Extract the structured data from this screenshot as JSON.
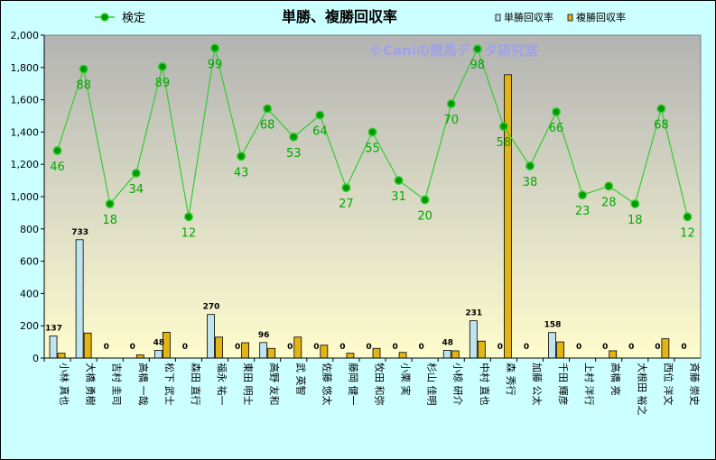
{
  "chart_data": {
    "type": "bar",
    "title": "単勝、複勝回収率",
    "watermark": "©Caniの競馬データ研究室",
    "xlabel": "",
    "ylabel": "",
    "ylim": [
      0,
      2000
    ],
    "y_ticks": [
      "0",
      "200",
      "400",
      "600",
      "800",
      "1,000",
      "1,200",
      "1,400",
      "1,600",
      "1,800",
      "2,000"
    ],
    "grid": false,
    "legend": [
      "top-left",
      "top-right"
    ],
    "categories": [
      "小林 真也",
      "大橋 勇樹",
      "吉村 圭司",
      "高橋 一哉",
      "松下 武士",
      "森田 直行",
      "福永 祐一",
      "東田 明士",
      "高野 友和",
      "武 英智",
      "佐藤 悠太",
      "藤岡 健一",
      "牧田 和弥",
      "小栗 実",
      "杉山 佳明",
      "小椋 研介",
      "中村 直也",
      "森 秀行",
      "加藤 公太",
      "千田 輝彦",
      "上村 洋行",
      "高橋 亮",
      "大根田 裕之",
      "西位 洋文",
      "斉藤 崇史"
    ],
    "series": [
      {
        "name": "単勝回収率",
        "kind": "bar",
        "color": "#bfe4ef",
        "values": [
          137,
          733,
          0,
          0,
          48,
          0,
          270,
          0,
          96,
          0,
          0,
          0,
          0,
          0,
          0,
          48,
          231,
          0,
          0,
          158,
          0,
          0,
          0,
          0,
          0
        ],
        "labels": [
          "137",
          "733",
          "0",
          "0",
          "48",
          "0",
          "270",
          "0",
          "96",
          "0",
          "0",
          "0",
          "0",
          "0",
          "0",
          "48",
          "231",
          "0",
          "0",
          "158",
          "0",
          "0",
          "0",
          "0",
          "0"
        ]
      },
      {
        "name": "複勝回収率",
        "kind": "bar",
        "color": "#e3b418",
        "values": [
          30,
          155,
          0,
          20,
          160,
          0,
          130,
          95,
          60,
          130,
          80,
          30,
          60,
          35,
          0,
          45,
          105,
          1755,
          0,
          100,
          0,
          45,
          0,
          120,
          0
        ]
      },
      {
        "name": "検定",
        "kind": "line",
        "color": "#33cc33",
        "values": [
          1285,
          1790,
          955,
          1145,
          1805,
          875,
          1920,
          1250,
          1545,
          1370,
          1505,
          1055,
          1400,
          1100,
          980,
          1575,
          1915,
          1435,
          1190,
          1525,
          1010,
          1065,
          955,
          1545,
          875
        ],
        "labels": [
          "46",
          "88",
          "18",
          "34",
          "89",
          "12",
          "99",
          "43",
          "68",
          "53",
          "64",
          "27",
          "55",
          "31",
          "20",
          "70",
          "98",
          "58",
          "38",
          "66",
          "23",
          "28",
          "18",
          "68",
          "12"
        ]
      }
    ]
  },
  "colors": {
    "border": "#000000",
    "line": "#33cc33",
    "marker": "#009900",
    "label_green": "#00aa00",
    "background": "#ccffff",
    "watermark": "#9999ff"
  }
}
